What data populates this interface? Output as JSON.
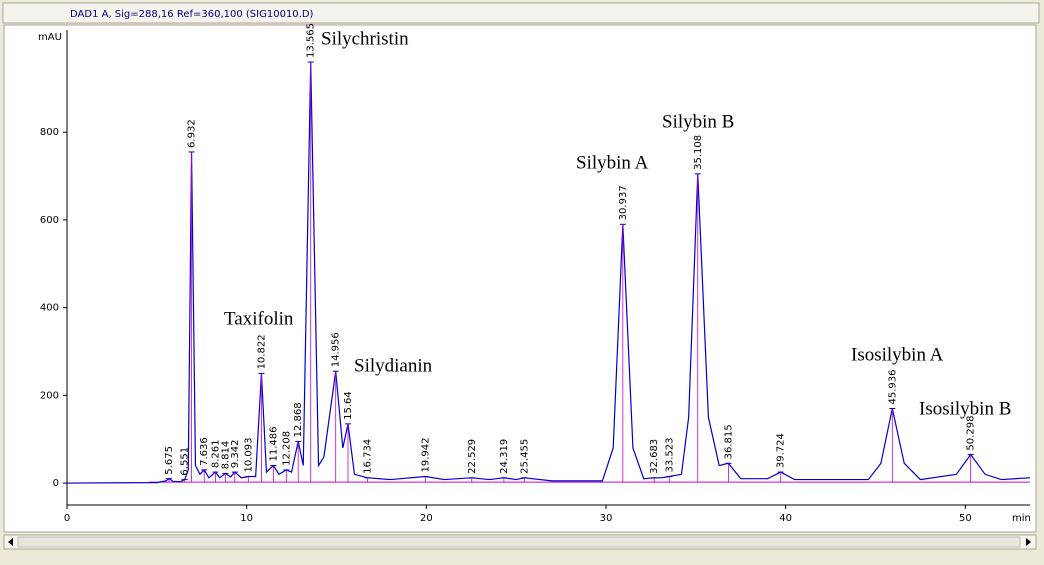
{
  "header": "DAD1 A, Sig=288,16 Ref=360,100 (SIG10010.D)",
  "chart_data": {
    "type": "line",
    "y_label": "mAU",
    "x_label": "min",
    "x": [
      0,
      5,
      5.5,
      5.675,
      5.9,
      6.3,
      6.551,
      6.75,
      6.932,
      7.15,
      7.4,
      7.636,
      7.9,
      8.261,
      8.5,
      8.814,
      9.1,
      9.342,
      9.7,
      10.093,
      10.5,
      10.822,
      11.1,
      11.486,
      11.8,
      12.208,
      12.5,
      12.868,
      13.15,
      13.565,
      14.0,
      14.3,
      14.956,
      15.35,
      15.64,
      16.0,
      16.734,
      18,
      19.942,
      21,
      22.529,
      23.5,
      24.319,
      25,
      25.455,
      27,
      29.8,
      30.4,
      30.937,
      31.5,
      32.1,
      32.683,
      33.1,
      33.523,
      34.2,
      34.6,
      35.108,
      35.7,
      36.3,
      36.815,
      37.5,
      39.0,
      39.724,
      40.5,
      44.6,
      45.3,
      45.936,
      46.6,
      47.5,
      49.5,
      50.298,
      51.1,
      52,
      53.6
    ],
    "series": [
      {
        "color": "#0000cc",
        "values": [
          0,
          1,
          5,
          10,
          4,
          3,
          8,
          30,
          755,
          40,
          20,
          30,
          12,
          25,
          12,
          22,
          14,
          25,
          12,
          15,
          15,
          250,
          25,
          40,
          20,
          30,
          25,
          95,
          40,
          960,
          40,
          60,
          255,
          80,
          135,
          20,
          12,
          8,
          15,
          8,
          12,
          8,
          12,
          8,
          12,
          5,
          5,
          80,
          590,
          80,
          10,
          12,
          12,
          15,
          20,
          150,
          705,
          150,
          40,
          45,
          10,
          10,
          25,
          8,
          8,
          45,
          170,
          45,
          8,
          20,
          65,
          20,
          8,
          12
        ]
      }
    ],
    "xlim": [
      0,
      53.6
    ],
    "ylim": [
      -50,
      1033
    ],
    "xticks": [
      0,
      10,
      20,
      30,
      40,
      50
    ],
    "yticks": [
      0,
      200,
      400,
      600,
      800
    ],
    "baseline_color": "#cc00cc",
    "peaks": {
      "x": [
        5.675,
        6.551,
        6.932,
        7.636,
        8.261,
        8.814,
        9.342,
        10.093,
        10.822,
        11.486,
        12.208,
        12.868,
        13.565,
        14.956,
        15.64,
        16.734,
        19.942,
        22.529,
        24.319,
        25.455,
        30.937,
        32.683,
        33.523,
        35.108,
        36.815,
        39.724,
        45.936,
        50.298
      ],
      "values": [
        10,
        8,
        755,
        30,
        25,
        22,
        25,
        15,
        250,
        40,
        30,
        95,
        960,
        255,
        135,
        12,
        15,
        12,
        12,
        12,
        590,
        12,
        15,
        705,
        45,
        25,
        170,
        65
      ]
    },
    "annotations": [
      "Taxifolin",
      "Silychristin",
      "Silydianin",
      "Silybin A",
      "Silybin B",
      "Isosilybin A",
      "Isosilybin B"
    ]
  }
}
